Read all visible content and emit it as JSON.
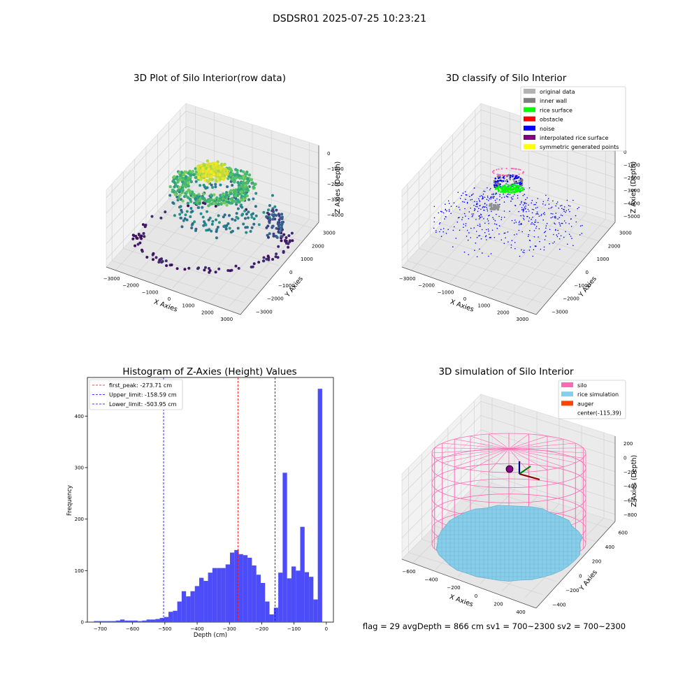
{
  "suptitle": "DSDSR01 2025-07-25 10:23:21",
  "footer": "flag = 29  avgDepth = 866 cm  sv1 = 700~2300  sv2 = 700~2300",
  "colors": {
    "hist_bar": "#4c4cf9",
    "peak_line": "#ff0000",
    "limit_line": "#0000ff",
    "silo": "#ff69b4",
    "rice": "#87ceeb",
    "auger": "#ff4500",
    "pane": "#f2f2f2"
  },
  "chart_data": [
    {
      "type": "scatter",
      "title": "3D Plot of Silo Interior(row data)",
      "xlabel": "X Axies",
      "ylabel": "Y Axies",
      "zlabel": "Z Axies (Depth)",
      "x_ticks": [
        "−3000",
        "−2000",
        "−1000",
        "0",
        "1000",
        "2000",
        "3000"
      ],
      "y_ticks": [
        "−3000",
        "−2000",
        "−1000",
        "0",
        "1000",
        "2000",
        "3000"
      ],
      "z_ticks": [
        "0",
        "−1000",
        "−2000",
        "−3000",
        "−4000"
      ],
      "xlim": [
        -3300,
        3300
      ],
      "ylim": [
        -3300,
        3300
      ],
      "zlim": [
        -4700,
        200
      ],
      "colormap": "viridis"
    },
    {
      "type": "scatter",
      "title": "3D classify of Silo Interior",
      "xlabel": "X Axies",
      "ylabel": "Y Axies",
      "zlabel": "Z Axies (Depth)",
      "x_ticks": [
        "−3000",
        "−2000",
        "−1000",
        "0",
        "1000",
        "2000",
        "3000"
      ],
      "y_ticks": [
        "−3000",
        "−2000",
        "−1000",
        "0",
        "1000",
        "2000",
        "3000"
      ],
      "z_ticks": [
        "0",
        "−1000",
        "−2000",
        "−3000",
        "−4000",
        "−5000"
      ],
      "xlim": [
        -3300,
        3300
      ],
      "ylim": [
        -3300,
        3300
      ],
      "zlim": [
        -5500,
        500
      ],
      "legend": [
        {
          "label": "original data",
          "color": "#b3b3b3"
        },
        {
          "label": "inner wall",
          "color": "#808080"
        },
        {
          "label": "rice surface",
          "color": "#00ff00"
        },
        {
          "label": "obstacle",
          "color": "#ff0000"
        },
        {
          "label": "noise",
          "color": "#0000ff"
        },
        {
          "label": "interpolated rice surface",
          "color": "#800080"
        },
        {
          "label": "symmetric generated points",
          "color": "#ffff00"
        }
      ],
      "legend_position": "upper right"
    },
    {
      "type": "bar",
      "title": "Histogram of Z-Axies (Height) Values",
      "xlabel": "Depth (cm)",
      "ylabel": "Frequency",
      "xlim": [
        -740,
        22
      ],
      "ylim": [
        0,
        475
      ],
      "x_ticks": [
        -700,
        -600,
        -500,
        -400,
        -300,
        -200,
        -100,
        0
      ],
      "y_ticks": [
        0,
        100,
        200,
        300,
        400
      ],
      "bin_width": 13.6,
      "bins_start": -720,
      "values": [
        2,
        2,
        2,
        2,
        2,
        3,
        5,
        3,
        3,
        3,
        2,
        3,
        5,
        5,
        6,
        8,
        10,
        20,
        22,
        40,
        60,
        50,
        60,
        70,
        86,
        80,
        96,
        105,
        105,
        105,
        112,
        135,
        140,
        132,
        130,
        125,
        110,
        92,
        76,
        40,
        15,
        28,
        96,
        290,
        85,
        108,
        100,
        185,
        97,
        88,
        44,
        453
      ],
      "lines": [
        {
          "label": "first_peak: -273.71 cm",
          "x": -273.71,
          "color": "#ff0000"
        },
        {
          "label": "Upper_limit: -158.59 cm",
          "x": -158.59,
          "color": "#0000ff"
        },
        {
          "label": "Lower_limit: -503.95 cm",
          "x": -503.95,
          "color": "#0000ff"
        }
      ],
      "legend_position": "upper left"
    },
    {
      "type": "scatter",
      "title": "3D simulation of Silo Interior",
      "xlabel": "X Axies",
      "ylabel": "Y Axies",
      "zlabel": "Z Axies (Depth)",
      "x_ticks": [
        "−600",
        "−400",
        "−200",
        "0",
        "200",
        "400"
      ],
      "y_ticks": [
        "−400",
        "−200",
        "0",
        "200",
        "400",
        "600"
      ],
      "z_ticks": [
        "200",
        "0",
        "−200",
        "−400",
        "−600",
        "−800"
      ],
      "xlim": [
        -700,
        480
      ],
      "ylim": [
        -500,
        650
      ],
      "zlim": [
        -950,
        300
      ],
      "legend": [
        {
          "label": "silo",
          "color": "#ff69b4"
        },
        {
          "label": "rice simulation",
          "color": "#87ceeb"
        },
        {
          "label": "auger",
          "color": "#ff4500"
        },
        {
          "label": "center(-115,39)",
          "color": ""
        }
      ],
      "legend_position": "upper right"
    }
  ]
}
